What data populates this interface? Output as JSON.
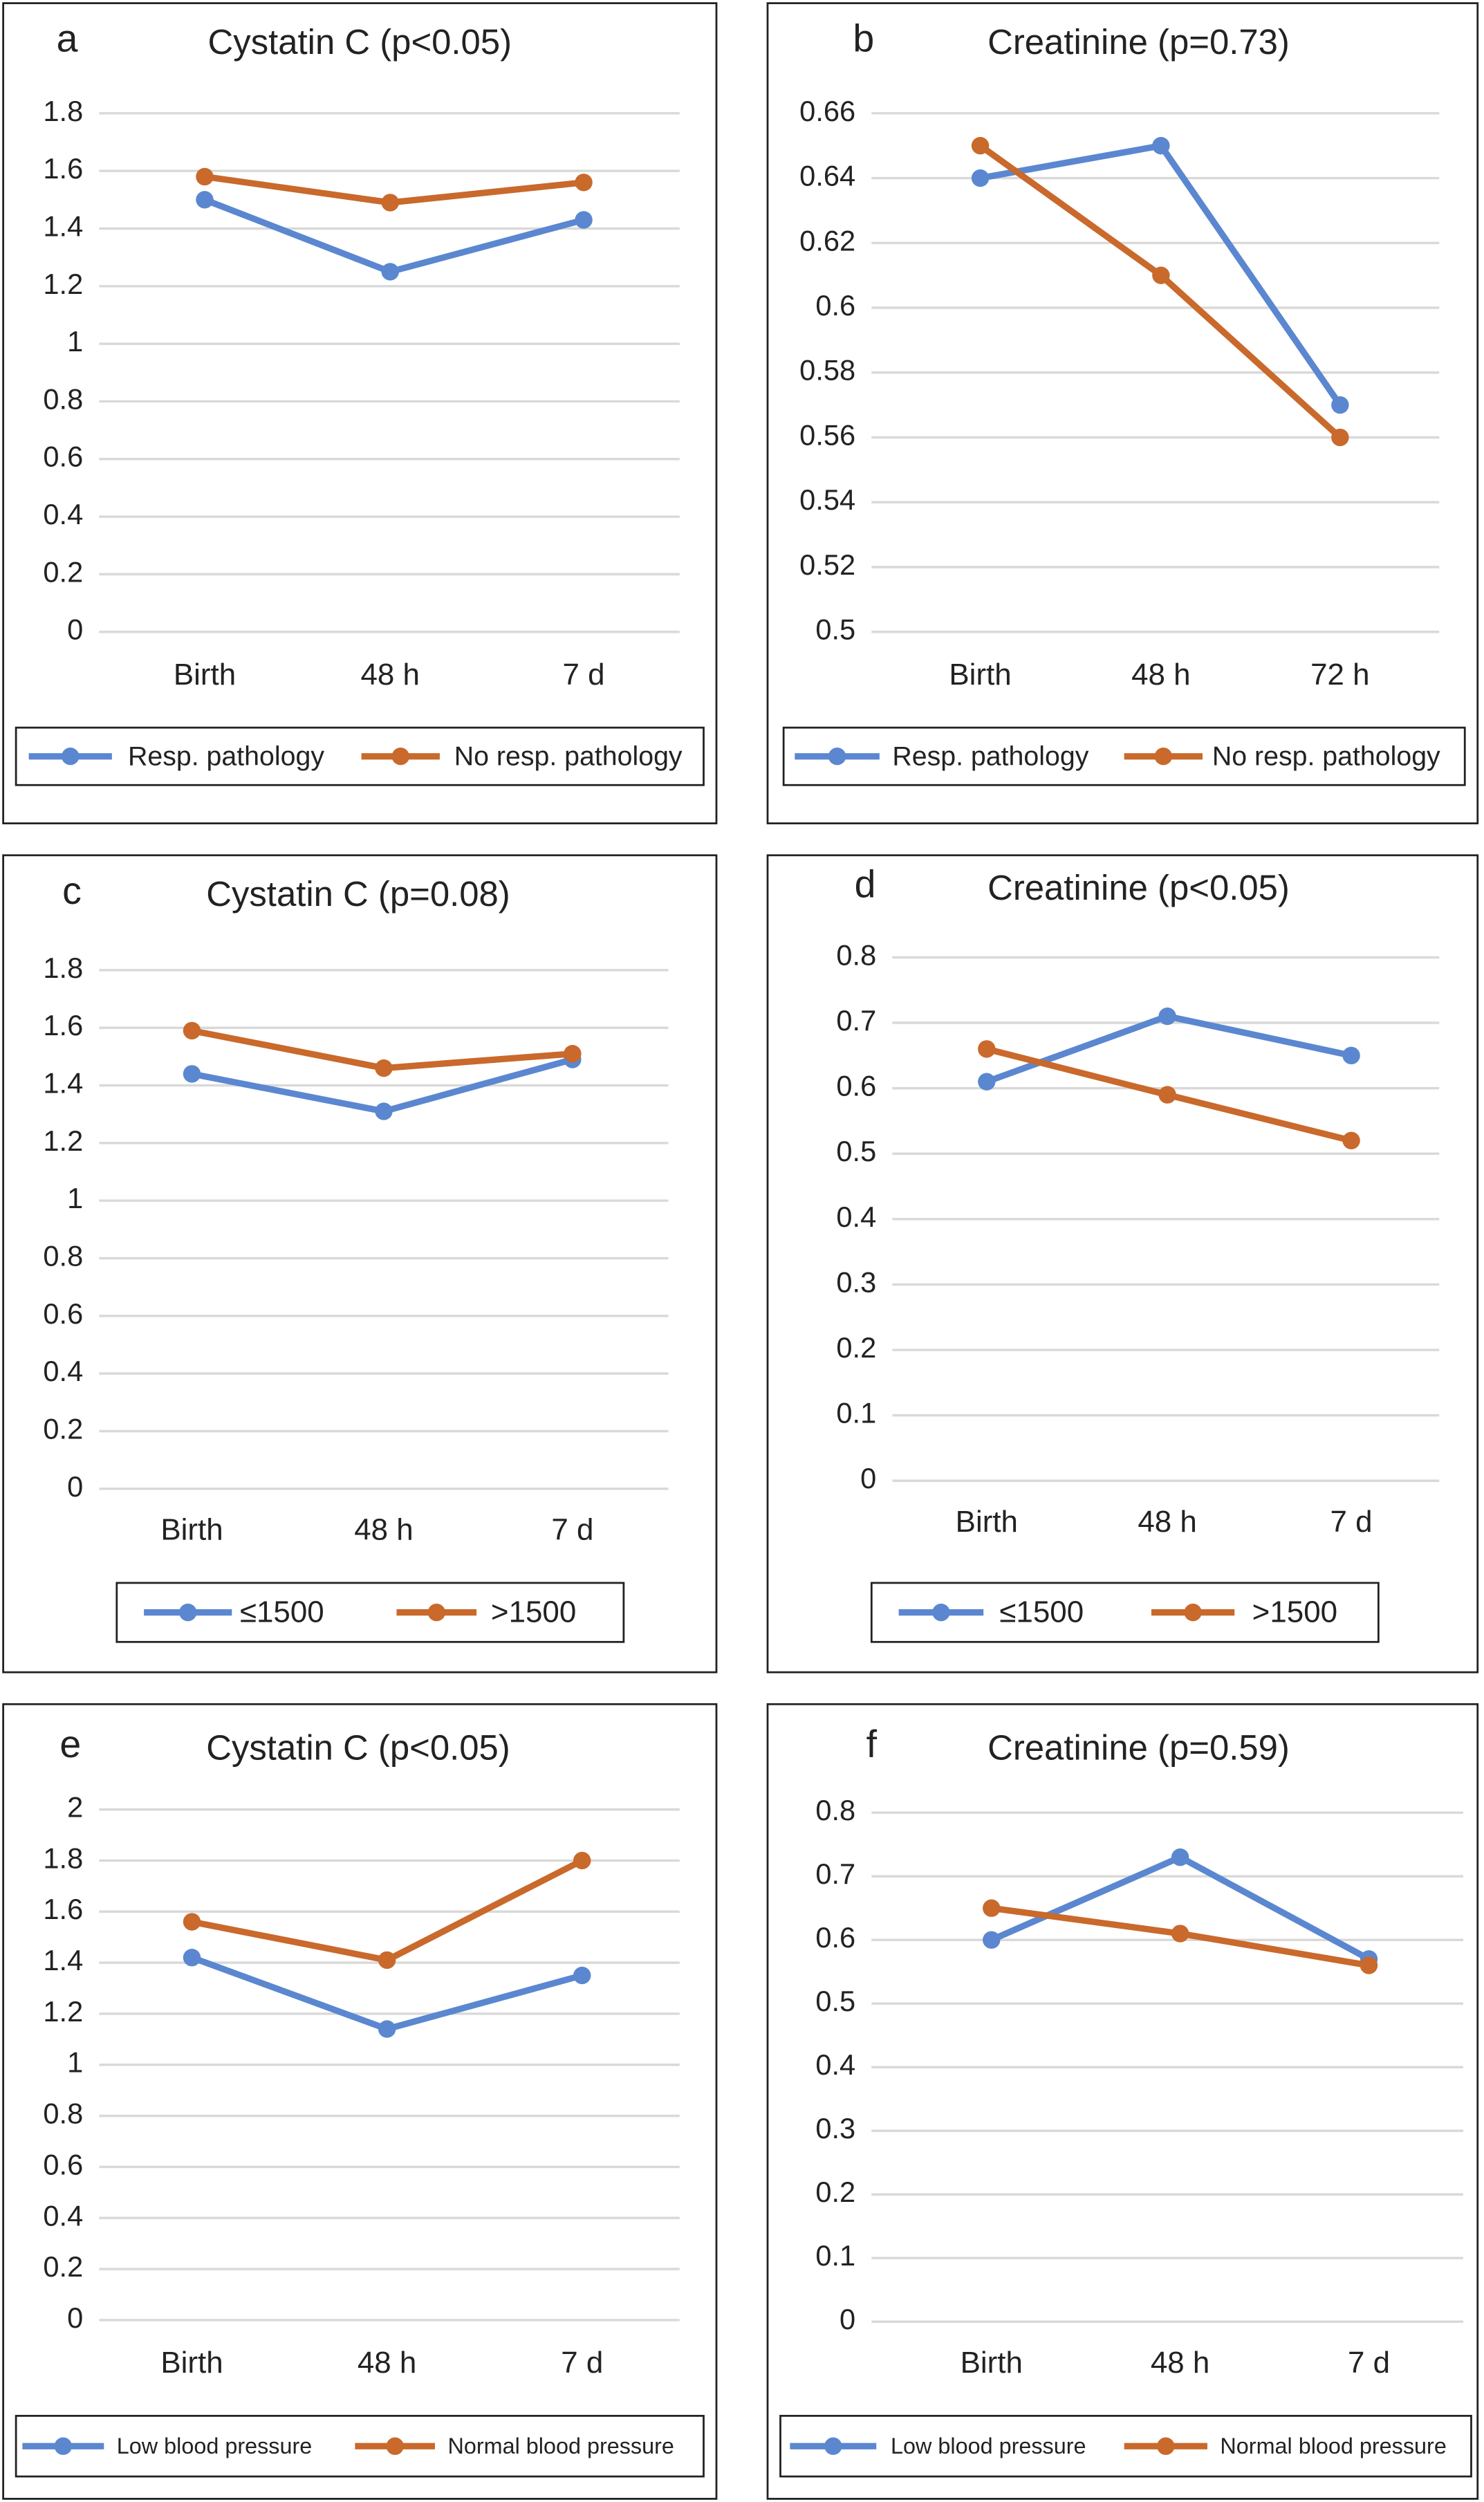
{
  "chart_data": [
    {
      "type": "line",
      "label": "a",
      "title": "Cystatin C (p<0.05)",
      "categories": [
        "Birth",
        "48 h",
        "7 d"
      ],
      "series": [
        {
          "name": "Resp. pathology",
          "color": "#5b87d0",
          "values": [
            1.5,
            1.25,
            1.43
          ]
        },
        {
          "name": "No resp. pathology",
          "color": "#c9692b",
          "values": [
            1.58,
            1.49,
            1.56
          ]
        }
      ],
      "ylim": [
        0,
        1.8
      ],
      "yticks": [
        0,
        0.2,
        0.4,
        0.6,
        0.8,
        1,
        1.2,
        1.4,
        1.6,
        1.8
      ],
      "grid": true,
      "legend": "bottom"
    },
    {
      "type": "line",
      "label": "b",
      "title": "Creatinine (p=0.73)",
      "categories": [
        "Birth",
        "48 h",
        "72 h"
      ],
      "series": [
        {
          "name": "Resp. pathology",
          "color": "#5b87d0",
          "values": [
            0.64,
            0.65,
            0.57
          ]
        },
        {
          "name": "No resp. pathology",
          "color": "#c9692b",
          "values": [
            0.65,
            0.61,
            0.56
          ]
        }
      ],
      "ylim": [
        0.5,
        0.66
      ],
      "yticks": [
        0.5,
        0.52,
        0.54,
        0.56,
        0.58,
        0.6,
        0.62,
        0.64,
        0.66
      ],
      "grid": true,
      "legend": "bottom"
    },
    {
      "type": "line",
      "label": "c",
      "title": "Cystatin C (p=0.08)",
      "categories": [
        "Birth",
        "48 h",
        "7 d"
      ],
      "series": [
        {
          "name": "≤1500",
          "color": "#5b87d0",
          "values": [
            1.44,
            1.31,
            1.49
          ]
        },
        {
          "name": ">1500",
          "color": "#c9692b",
          "values": [
            1.59,
            1.46,
            1.51
          ]
        }
      ],
      "ylim": [
        0,
        1.8
      ],
      "yticks": [
        0,
        0.2,
        0.4,
        0.6,
        0.8,
        1,
        1.2,
        1.4,
        1.6,
        1.8
      ],
      "grid": true,
      "legend": "bottom"
    },
    {
      "type": "line",
      "label": "d",
      "title": "Creatinine (p<0.05)",
      "categories": [
        "Birth",
        "48 h",
        "7 d"
      ],
      "series": [
        {
          "name": "≤1500",
          "color": "#5b87d0",
          "values": [
            0.61,
            0.71,
            0.65
          ]
        },
        {
          "name": ">1500",
          "color": "#c9692b",
          "values": [
            0.66,
            0.59,
            0.52
          ]
        }
      ],
      "ylim": [
        0,
        0.8
      ],
      "yticks": [
        0,
        0.1,
        0.2,
        0.3,
        0.4,
        0.5,
        0.6,
        0.7,
        0.8
      ],
      "grid": true,
      "legend": "bottom"
    },
    {
      "type": "line",
      "label": "e",
      "title": "Cystatin C (p<0.05)",
      "categories": [
        "Birth",
        "48 h",
        "7 d"
      ],
      "series": [
        {
          "name": "Low blood pressure",
          "color": "#5b87d0",
          "values": [
            1.42,
            1.14,
            1.35
          ]
        },
        {
          "name": "Normal blood pressure",
          "color": "#c9692b",
          "values": [
            1.56,
            1.41,
            1.8
          ]
        }
      ],
      "ylim": [
        0,
        2
      ],
      "yticks": [
        0,
        0.2,
        0.4,
        0.6,
        0.8,
        1,
        1.2,
        1.4,
        1.6,
        1.8,
        2
      ],
      "grid": true,
      "legend": "bottom"
    },
    {
      "type": "line",
      "label": "f",
      "title": "Creatinine (p=0.59)",
      "categories": [
        "Birth",
        "48 h",
        "7 d"
      ],
      "series": [
        {
          "name": "Low blood pressure",
          "color": "#5b87d0",
          "values": [
            0.6,
            0.73,
            0.57
          ]
        },
        {
          "name": "Normal blood pressure",
          "color": "#c9692b",
          "values": [
            0.65,
            0.61,
            0.56
          ]
        }
      ],
      "ylim": [
        0,
        0.8
      ],
      "yticks": [
        0,
        0.1,
        0.2,
        0.3,
        0.4,
        0.5,
        0.6,
        0.7,
        0.8
      ],
      "grid": true,
      "legend": "bottom"
    }
  ]
}
